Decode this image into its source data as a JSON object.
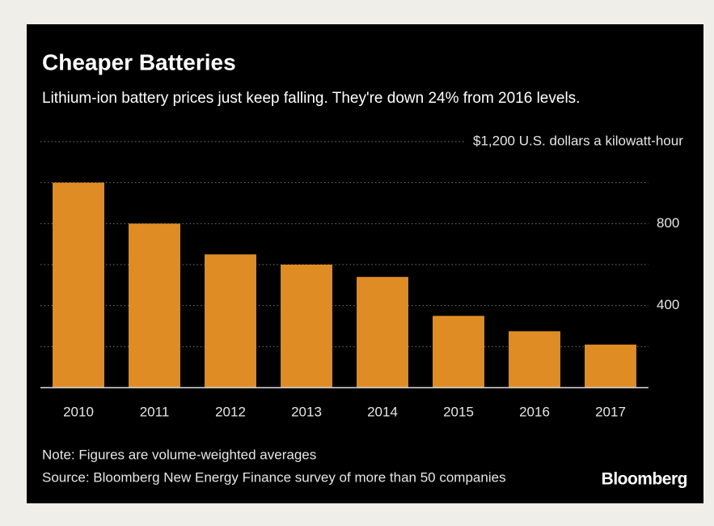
{
  "chart_data": {
    "type": "bar",
    "title": "Cheaper Batteries",
    "subtitle": "Lithium-ion battery prices just keep falling. They're down 24% from 2016 levels.",
    "categories": [
      "2010",
      "2011",
      "2012",
      "2013",
      "2014",
      "2015",
      "2016",
      "2017"
    ],
    "values": [
      1000,
      800,
      650,
      600,
      540,
      350,
      275,
      210
    ],
    "color": "#e08c25",
    "ylim": [
      0,
      1200
    ],
    "yticks": [
      400,
      800,
      {
        "value": 1200,
        "label": "$1,200 U.S. dollars a kilowatt-hour"
      }
    ],
    "minor_yticks": [
      200,
      600,
      1000
    ],
    "grid": true,
    "note": "Note: Figures are volume-weighted averages",
    "source": "Source: Bloomberg New Energy Finance survey of more than 50 companies",
    "brand": "Bloomberg"
  }
}
